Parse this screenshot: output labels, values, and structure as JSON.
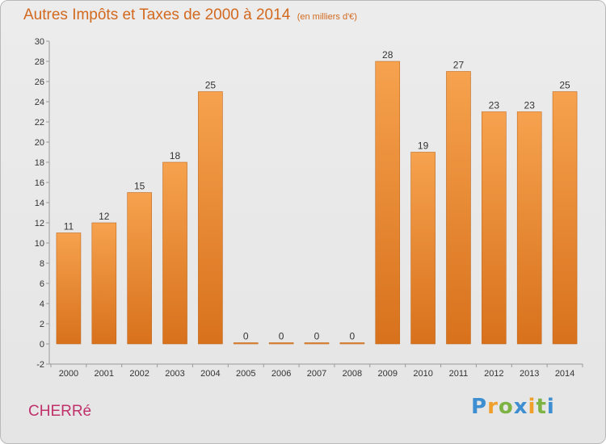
{
  "header": {
    "title": "Autres Impôts et Taxes de 2000 à 2014",
    "unit": "(en milliers d'€)"
  },
  "commune": "CHERRé",
  "logo": [
    "P",
    "r",
    "o",
    "x",
    "i",
    "t",
    "i"
  ],
  "colors": {
    "bar_top": "#f6a24e",
    "bar_bottom": "#d8711c",
    "bar_edge": "#c06a1e",
    "title": "#d2691e",
    "commune": "#c0316b"
  },
  "chart_data": {
    "type": "bar",
    "title": "Autres Impôts et Taxes de 2000 à 2014",
    "subtitle": "(en milliers d'€)",
    "xlabel": "",
    "ylabel": "",
    "categories": [
      "2000",
      "2001",
      "2002",
      "2003",
      "2004",
      "2005",
      "2006",
      "2007",
      "2008",
      "2009",
      "2010",
      "2011",
      "2012",
      "2013",
      "2014"
    ],
    "values": [
      11,
      12,
      15,
      18,
      25,
      0,
      0,
      0,
      0,
      28,
      19,
      27,
      23,
      23,
      25
    ],
    "ylim": [
      -2,
      30
    ],
    "yticks": [
      -2,
      0,
      2,
      4,
      6,
      8,
      10,
      12,
      14,
      16,
      18,
      20,
      22,
      24,
      26,
      28,
      30
    ],
    "grid": false,
    "legend": "none"
  }
}
